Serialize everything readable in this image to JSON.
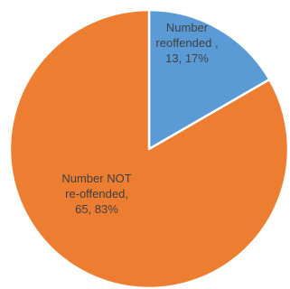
{
  "chart_data": {
    "type": "pie",
    "categories": [
      "Number reoffended",
      "Number NOT re-offended"
    ],
    "values": [
      13,
      65
    ],
    "percentages": [
      17,
      83
    ],
    "colors": [
      "#5B9BD5",
      "#ED7D31"
    ],
    "data_labels": [
      [
        "Number",
        "reoffended ,",
        "13, 17%"
      ],
      [
        "Number NOT",
        "re-offended,",
        "65, 83%"
      ]
    ],
    "start_angle": "12 o'clock",
    "direction": "clockwise",
    "legend": "none"
  }
}
